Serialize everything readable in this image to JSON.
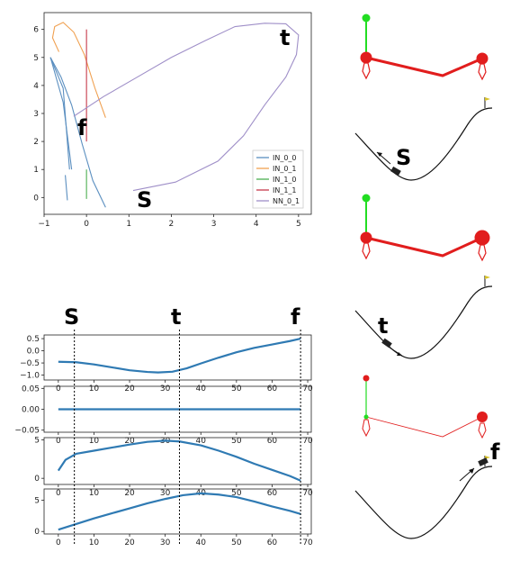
{
  "colors": {
    "IN_0_0": "#5b8fc0",
    "IN_0_1": "#f0a050",
    "IN_1_0": "#4caf50",
    "IN_1_1": "#c63a4a",
    "NN_0_1": "#9f8fc8",
    "timeseries": "#2f7ab3",
    "robot_link": "#e11d1d",
    "robot_top": "#22dd22"
  },
  "markers": {
    "s": "S",
    "t": "t",
    "f": "f"
  },
  "chart_data": [
    {
      "type": "line",
      "title": "",
      "xlabel": "",
      "ylabel": "",
      "xlim": [
        -1.0,
        5.3
      ],
      "ylim": [
        -0.6,
        6.6
      ],
      "xticks": [
        "−1",
        "0",
        "1",
        "2",
        "3",
        "4",
        "5"
      ],
      "yticks": [
        "0",
        "1",
        "2",
        "3",
        "4",
        "5",
        "6"
      ],
      "legend_position": "lower-right",
      "grid": false,
      "series": [
        {
          "name": "IN_0_0",
          "x": [
            -0.85,
            -0.6,
            -0.35,
            -0.1,
            0.15,
            0.45
          ],
          "y": [
            5.0,
            4.3,
            3.3,
            1.9,
            0.6,
            -0.35
          ]
        },
        {
          "name": "IN_0_1",
          "x": [
            -0.65,
            -0.8,
            -0.75,
            -0.55,
            -0.3,
            -0.05,
            0.2,
            0.45
          ],
          "y": [
            5.2,
            5.7,
            6.1,
            6.25,
            5.9,
            5.1,
            3.9,
            2.85
          ]
        },
        {
          "name": "IN_1_0",
          "x": [
            0.0,
            0.0
          ],
          "y": [
            -0.05,
            1.0
          ]
        },
        {
          "name": "IN_1_1",
          "x": [
            0.0,
            0.0
          ],
          "y": [
            2.0,
            6.0
          ]
        },
        {
          "name": "NN_0_1",
          "x": [
            1.1,
            2.1,
            3.1,
            3.7,
            4.2,
            4.7,
            4.95,
            5.0,
            4.7,
            4.2,
            3.5,
            2.8,
            2.0,
            1.2,
            0.4,
            -0.3
          ],
          "y": [
            0.25,
            0.55,
            1.3,
            2.2,
            3.3,
            4.3,
            5.1,
            5.8,
            6.2,
            6.22,
            6.1,
            5.6,
            5.0,
            4.3,
            3.6,
            2.9
          ]
        },
        {
          "name": "",
          "x": [
            -0.85,
            -0.55,
            -0.35
          ],
          "y": [
            5.0,
            3.4,
            1.0
          ]
        },
        {
          "name": "",
          "x": [
            -0.85,
            -0.55,
            -0.4
          ],
          "y": [
            5.0,
            3.9,
            1.0
          ]
        },
        {
          "name": "",
          "x": [
            -0.5,
            -0.45
          ],
          "y": [
            0.8,
            -0.1
          ]
        }
      ]
    },
    {
      "type": "line",
      "xlim": [
        -4,
        71
      ],
      "ylim": [
        -1.2,
        0.65
      ],
      "yticks": [
        "0.5",
        "0.0",
        "−0.5",
        "−1.0"
      ],
      "xticks": [
        "0",
        "10",
        "20",
        "30",
        "40",
        "50",
        "60",
        "70"
      ],
      "series": [
        {
          "name": "",
          "x": [
            0,
            5,
            10,
            15,
            20,
            25,
            28,
            32,
            36,
            40,
            45,
            50,
            55,
            60,
            65,
            68
          ],
          "y": [
            -0.45,
            -0.47,
            -0.56,
            -0.68,
            -0.8,
            -0.87,
            -0.89,
            -0.86,
            -0.72,
            -0.52,
            -0.28,
            -0.06,
            0.12,
            0.26,
            0.4,
            0.5
          ]
        }
      ]
    },
    {
      "type": "line",
      "xlim": [
        -4,
        71
      ],
      "ylim": [
        -0.055,
        0.055
      ],
      "yticks": [
        "0.05",
        "0.00",
        "−0.05"
      ],
      "xticks": [
        "0",
        "10",
        "20",
        "30",
        "40",
        "50",
        "60",
        "70"
      ],
      "series": [
        {
          "name": "",
          "x": [
            0,
            68
          ],
          "y": [
            0.0,
            0.0
          ]
        }
      ]
    },
    {
      "type": "line",
      "xlim": [
        -4,
        71
      ],
      "ylim": [
        -0.8,
        5.3
      ],
      "yticks": [
        "5",
        "0"
      ],
      "xticks": [
        "0",
        "10",
        "20",
        "30",
        "40",
        "50",
        "60",
        "70"
      ],
      "series": [
        {
          "name": "",
          "x": [
            0,
            2,
            5,
            10,
            15,
            20,
            25,
            30,
            34,
            40,
            45,
            50,
            55,
            60,
            65,
            68
          ],
          "y": [
            1.0,
            2.4,
            3.2,
            3.6,
            4.0,
            4.4,
            4.75,
            4.9,
            4.8,
            4.3,
            3.6,
            2.8,
            1.9,
            1.1,
            0.3,
            -0.3
          ]
        }
      ]
    },
    {
      "type": "line",
      "xlim": [
        -4,
        71
      ],
      "ylim": [
        -0.4,
        6.8
      ],
      "yticks": [
        "5",
        "0"
      ],
      "xticks": [
        "0",
        "10",
        "20",
        "30",
        "40",
        "50",
        "60",
        "70"
      ],
      "series": [
        {
          "name": "",
          "x": [
            0,
            5,
            10,
            15,
            20,
            25,
            30,
            35,
            40,
            45,
            50,
            55,
            60,
            65,
            68
          ],
          "y": [
            0.3,
            1.2,
            2.1,
            2.9,
            3.7,
            4.5,
            5.2,
            5.8,
            6.1,
            5.9,
            5.5,
            4.8,
            4.0,
            3.3,
            2.8
          ]
        }
      ]
    }
  ],
  "dashed_markers_x": [
    4.5,
    34,
    68
  ]
}
